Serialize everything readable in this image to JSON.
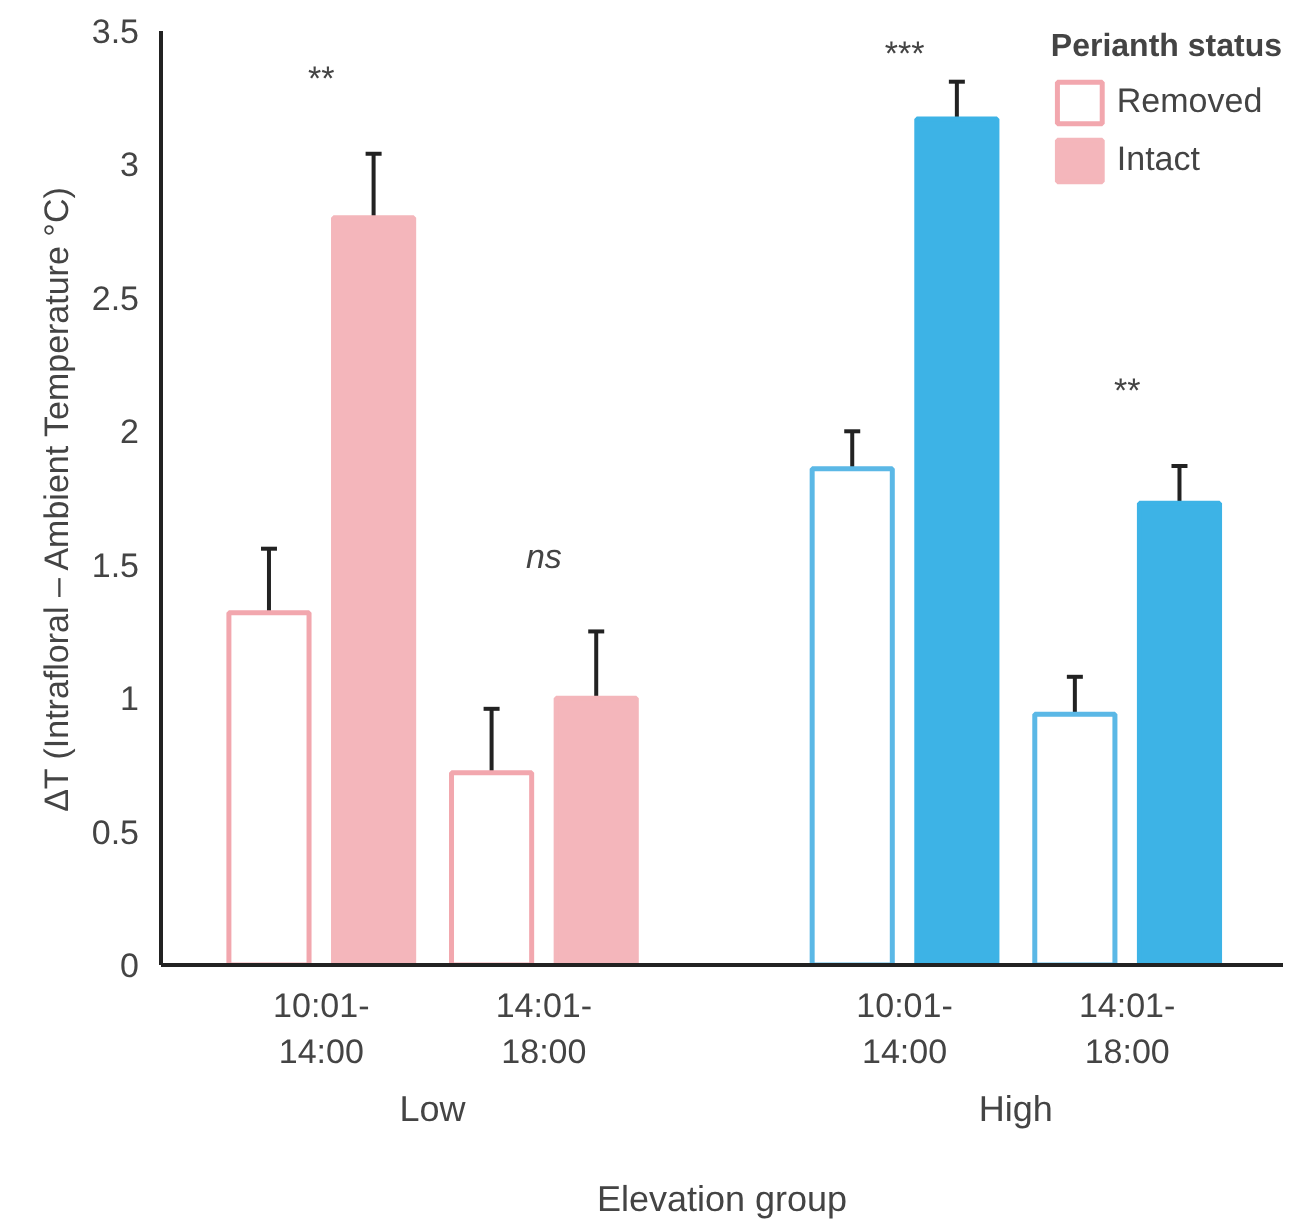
{
  "chart_data": {
    "type": "bar",
    "xlabel": "Elevation group",
    "ylabel": "ΔT (Intrafloral – Ambient Temperature °C)",
    "legend_title": "Perianth status",
    "categories": [
      "10:01-\n14:00",
      "14:01-\n18:00",
      "10:01-\n14:00",
      "14:01-\n18:00"
    ],
    "series": [
      {
        "name": "Removed",
        "color": "#ffffff",
        "colors": [
          "#f2a7ae",
          "#f2a7ae",
          "#5bb8e6",
          "#5bb8e6"
        ],
        "values": [
          1.32,
          0.72,
          1.86,
          0.94
        ],
        "errors": [
          0.24,
          0.24,
          0.14,
          0.14
        ]
      },
      {
        "name": "Intact",
        "colors": [
          "#f4b6bb",
          "#f4b6bb",
          "#3db3e6",
          "#3db3e6"
        ],
        "values": [
          2.8,
          1.0,
          3.17,
          1.73
        ],
        "errors": [
          0.24,
          0.25,
          0.14,
          0.14
        ]
      }
    ],
    "ylim": [
      0,
      3.5
    ],
    "yticks": [
      0,
      0.5,
      1,
      1.5,
      2,
      2.5,
      3,
      3.5
    ],
    "grid": false,
    "legend": "top right",
    "annotations": [
      "**",
      "ns",
      "***",
      "**",
      "Low",
      "High"
    ]
  }
}
